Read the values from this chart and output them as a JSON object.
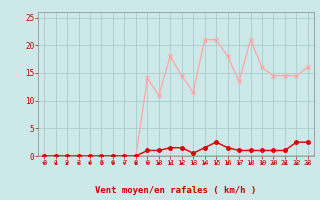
{
  "hours": [
    0,
    1,
    2,
    3,
    4,
    5,
    6,
    7,
    8,
    9,
    10,
    11,
    12,
    13,
    14,
    15,
    16,
    17,
    18,
    19,
    20,
    21,
    22,
    23
  ],
  "avg_wind": [
    0,
    0,
    0,
    0,
    0,
    0,
    0,
    0,
    0,
    1,
    1,
    1.5,
    1.5,
    0.5,
    1.5,
    2.5,
    1.5,
    1,
    1,
    1,
    1,
    1,
    2.5,
    2.5
  ],
  "gust_wind": [
    0,
    0,
    0,
    0,
    0,
    0,
    0,
    0,
    0,
    14,
    11,
    18,
    14.5,
    11.5,
    21,
    21,
    18,
    13.5,
    21,
    16,
    14.5,
    14.5,
    14.5,
    16
  ],
  "avg_color": "#dd0000",
  "gust_color": "#ffaaaa",
  "bg_color": "#cce8e8",
  "grid_color": "#aacccc",
  "xlabel": "Vent moyen/en rafales ( km/h )",
  "ylim": [
    0,
    26
  ],
  "xlim": [
    -0.5,
    23.5
  ],
  "yticks": [
    0,
    5,
    10,
    15,
    20,
    25
  ],
  "xticks": [
    0,
    1,
    2,
    3,
    4,
    5,
    6,
    7,
    8,
    9,
    10,
    11,
    12,
    13,
    14,
    15,
    16,
    17,
    18,
    19,
    20,
    21,
    22,
    23
  ],
  "label_color": "#cc0000",
  "spine_color": "#888888"
}
